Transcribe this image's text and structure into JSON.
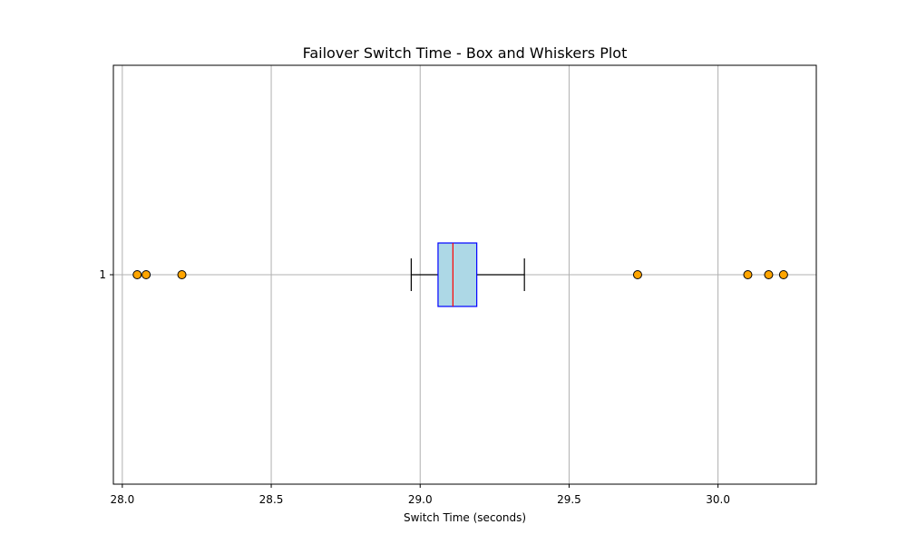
{
  "chart_data": {
    "type": "boxplot",
    "orientation": "horizontal",
    "title": "Failover Switch Time - Box and Whiskers Plot",
    "xlabel": "Switch Time (seconds)",
    "ylabel": "",
    "xlim": [
      27.97,
      30.33
    ],
    "x_ticks": [
      28.0,
      28.5,
      29.0,
      29.5,
      30.0
    ],
    "x_tick_labels": [
      "28.0",
      "28.5",
      "29.0",
      "29.5",
      "30.0"
    ],
    "categories": [
      "1"
    ],
    "grid": true,
    "boxes": [
      {
        "category": "1",
        "whisker_low": 28.97,
        "q1": 29.06,
        "median": 29.11,
        "q3": 29.19,
        "whisker_high": 29.35,
        "outliers": [
          28.05,
          28.08,
          28.2,
          29.73,
          30.1,
          30.17,
          30.22
        ]
      }
    ],
    "colors": {
      "box_fill": "#add8e6",
      "box_edge": "#0000ff",
      "median": "#ff0000",
      "whisker": "#000000",
      "outlier_fill": "#ffa500",
      "outlier_edge": "#000000",
      "grid": "#b0b0b0"
    }
  }
}
